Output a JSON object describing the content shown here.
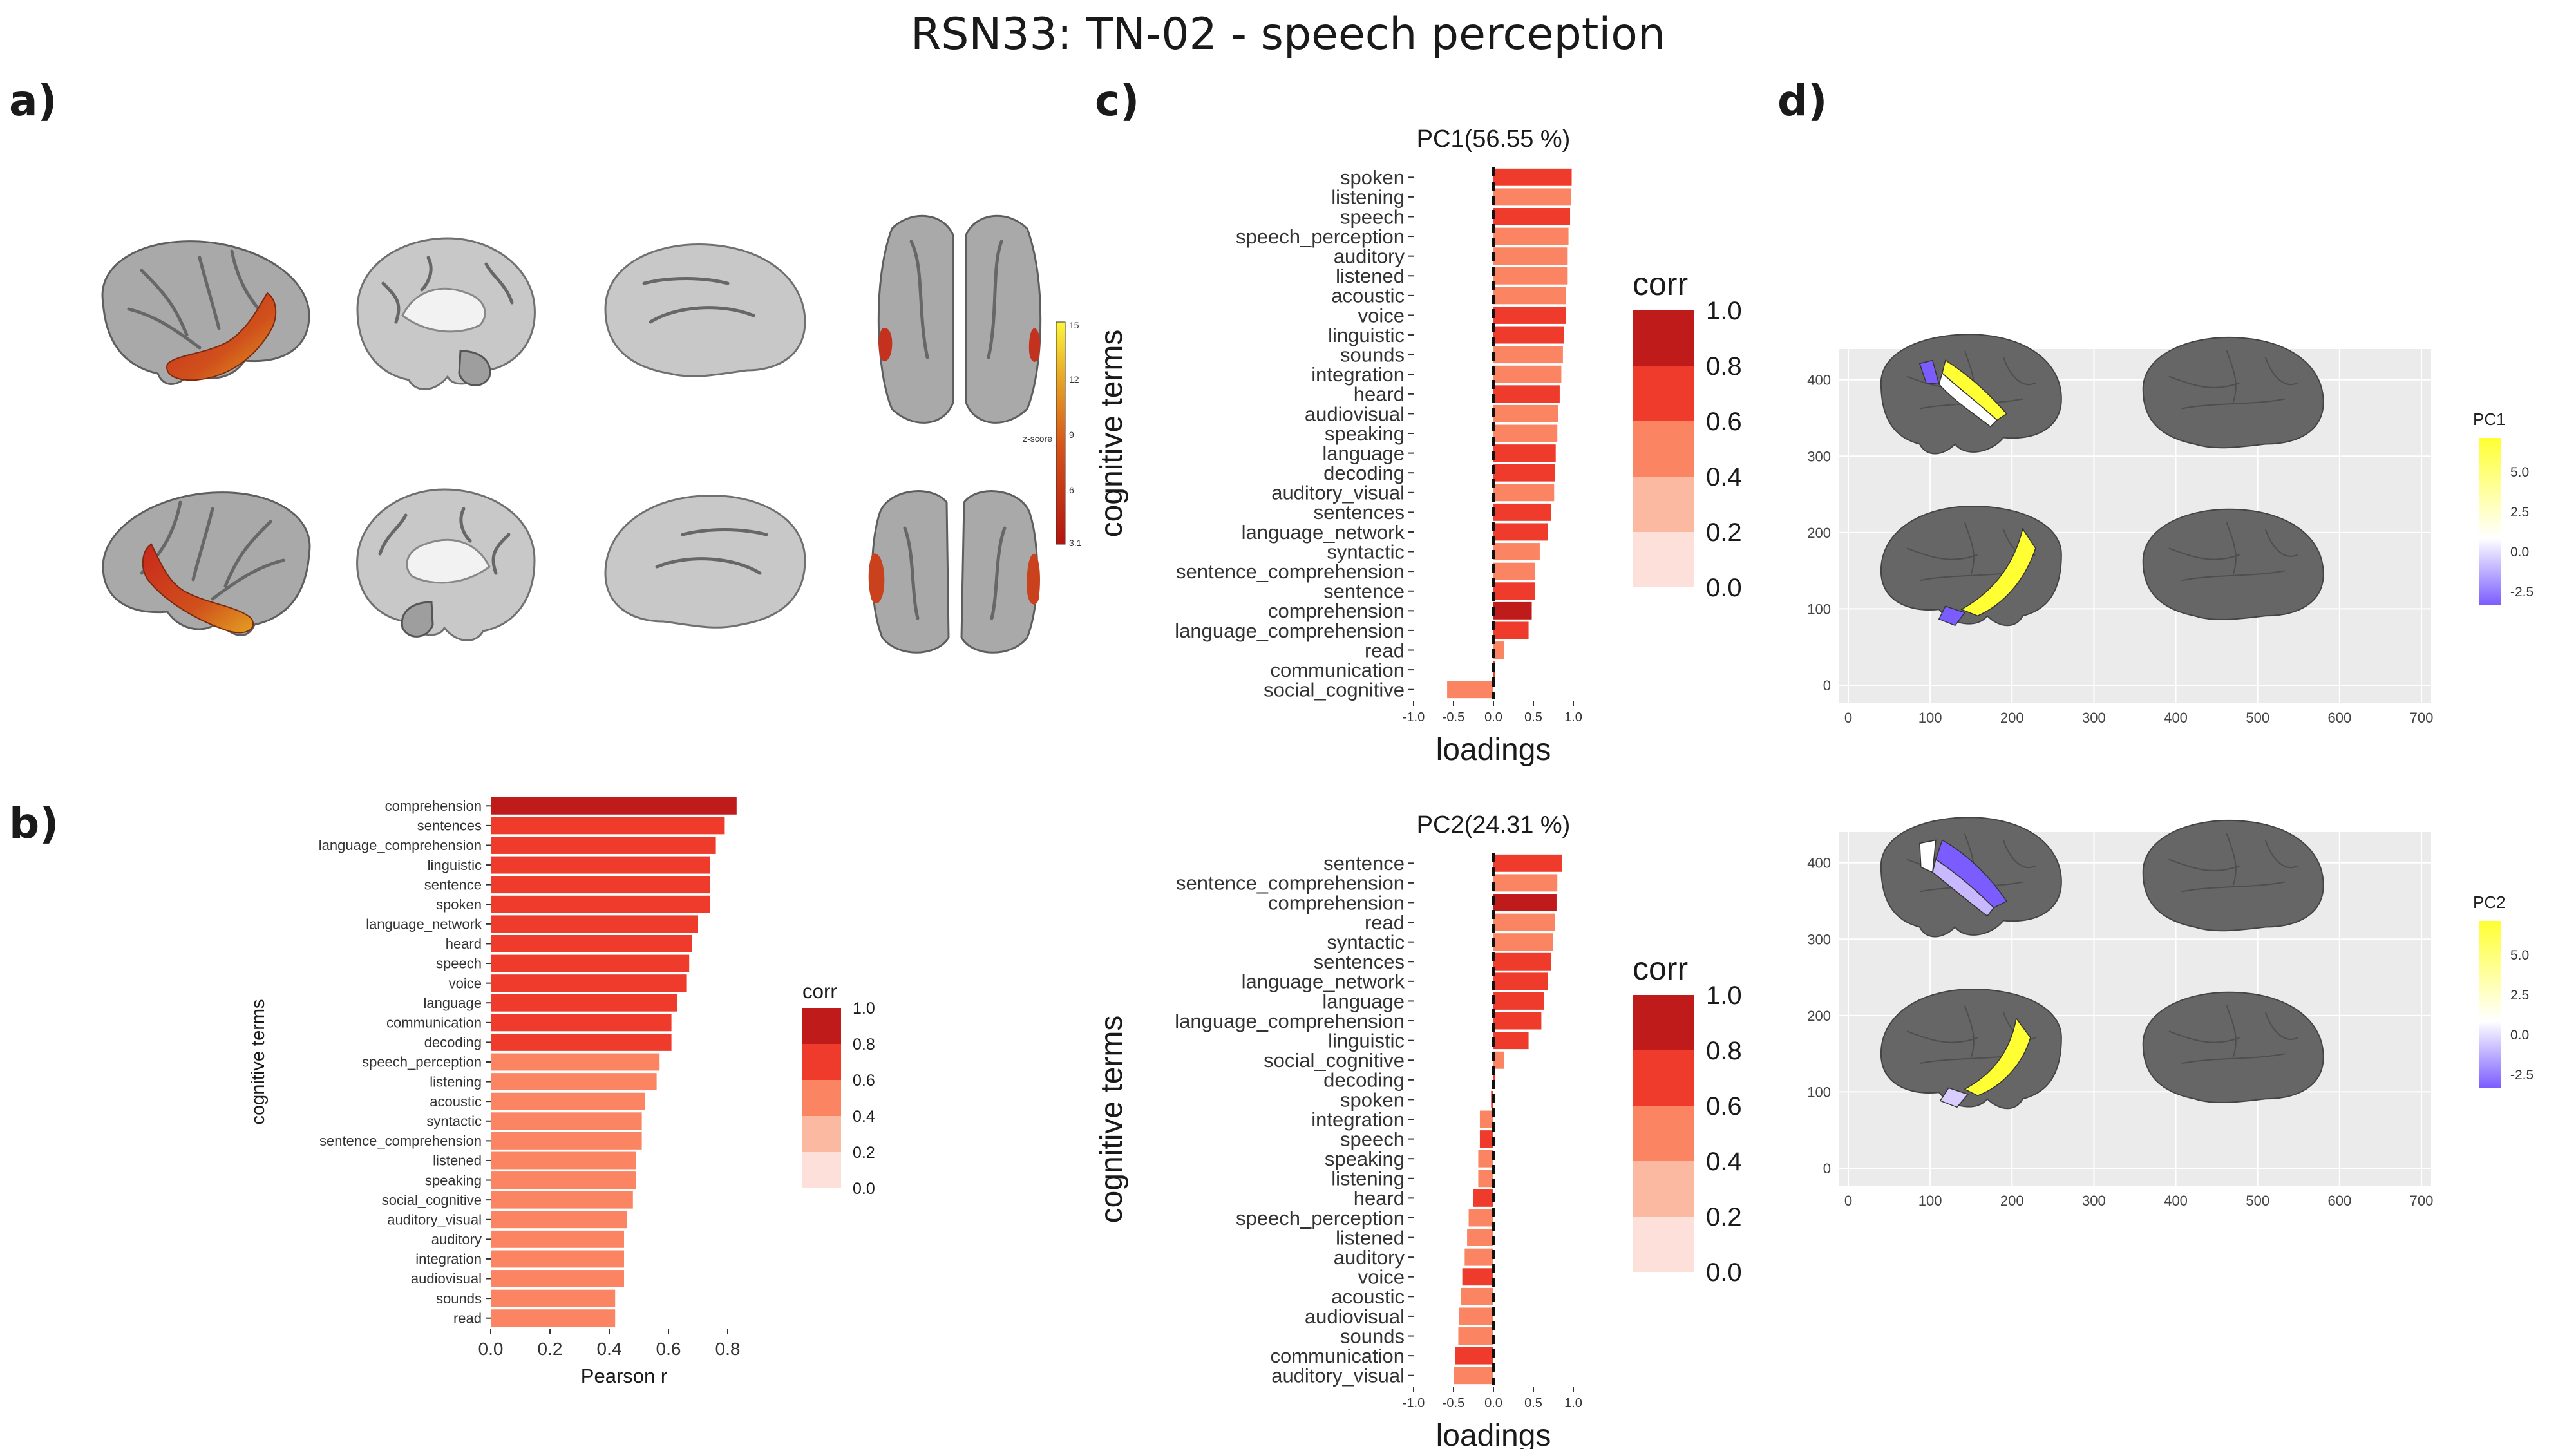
{
  "title": "RSN33: TN-02 - speech perception",
  "panels": {
    "a": "a)",
    "b": "b)",
    "c": "c)",
    "d": "d)"
  },
  "panel_a": {
    "colorbar_label": "z-score",
    "colorbar_ticks": [
      "15",
      "12",
      "9",
      "6",
      "3.1"
    ]
  },
  "palette": {
    "corr_bins": [
      "#fde0d9",
      "#fcb9a1",
      "#fb8462",
      "#ef3b2c",
      "#c01b1b"
    ],
    "pc_high": "#ffff33",
    "pc_mid": "#ffffff",
    "pc_low": "#7a5cff",
    "brain_gray": "#666666",
    "panel_bg": "#ebebeb"
  },
  "chart_data": [
    {
      "id": "b",
      "type": "bar",
      "orientation": "horizontal",
      "xlabel": "Pearson r",
      "ylabel": "cognitive terms",
      "xlim": [
        0,
        0.9
      ],
      "xticks": [
        0.0,
        0.2,
        0.4,
        0.6,
        0.8
      ],
      "xtick_labels": [
        "0.0",
        "0.2",
        "0.4",
        "0.6",
        "0.8"
      ],
      "legend": {
        "title": "corr",
        "labels": [
          "1.0",
          "0.8",
          "0.6",
          "0.4",
          "0.2",
          "0.0"
        ],
        "placement": "right"
      },
      "categories": [
        "comprehension",
        "sentences",
        "language_comprehension",
        "linguistic",
        "sentence",
        "spoken",
        "language_network",
        "heard",
        "speech",
        "voice",
        "language",
        "communication",
        "decoding",
        "speech_perception",
        "listening",
        "acoustic",
        "syntactic",
        "sentence_comprehension",
        "listened",
        "speaking",
        "social_cognitive",
        "auditory_visual",
        "auditory",
        "integration",
        "audiovisual",
        "sounds",
        "read"
      ],
      "values": [
        0.83,
        0.79,
        0.76,
        0.74,
        0.74,
        0.74,
        0.7,
        0.68,
        0.67,
        0.66,
        0.63,
        0.61,
        0.61,
        0.57,
        0.56,
        0.52,
        0.51,
        0.51,
        0.49,
        0.49,
        0.48,
        0.46,
        0.45,
        0.45,
        0.45,
        0.42,
        0.42
      ]
    },
    {
      "id": "c1",
      "type": "bar",
      "orientation": "horizontal",
      "title": "PC1(56.55 %)",
      "xlabel": "loadings",
      "ylabel": "cognitive terms",
      "xlim": [
        -1.0,
        1.0
      ],
      "xticks": [
        -1.0,
        -0.5,
        0.0,
        0.5,
        1.0
      ],
      "xtick_labels": [
        "-1.0",
        "-0.5",
        "0.0",
        "0.5",
        "1.0"
      ],
      "legend": {
        "title": "corr",
        "labels": [
          "1.0",
          "0.8",
          "0.6",
          "0.4",
          "0.2",
          "0.0"
        ],
        "placement": "right"
      },
      "categories": [
        "spoken",
        "listening",
        "speech",
        "speech_perception",
        "auditory",
        "listened",
        "acoustic",
        "voice",
        "linguistic",
        "sounds",
        "integration",
        "heard",
        "audiovisual",
        "speaking",
        "language",
        "decoding",
        "auditory_visual",
        "sentences",
        "language_network",
        "syntactic",
        "sentence_comprehension",
        "sentence",
        "comprehension",
        "language_comprehension",
        "read",
        "communication",
        "social_cognitive"
      ],
      "values": [
        0.98,
        0.97,
        0.96,
        0.94,
        0.93,
        0.93,
        0.91,
        0.91,
        0.88,
        0.87,
        0.85,
        0.83,
        0.81,
        0.8,
        0.78,
        0.77,
        0.76,
        0.72,
        0.68,
        0.58,
        0.52,
        0.52,
        0.48,
        0.44,
        0.13,
        0.02,
        -0.58
      ],
      "corr": [
        0.74,
        0.56,
        0.66,
        0.57,
        0.45,
        0.49,
        0.52,
        0.66,
        0.74,
        0.42,
        0.45,
        0.68,
        0.45,
        0.49,
        0.63,
        0.61,
        0.46,
        0.79,
        0.7,
        0.51,
        0.51,
        0.74,
        0.83,
        0.76,
        0.42,
        0.61,
        0.48
      ]
    },
    {
      "id": "c2",
      "type": "bar",
      "orientation": "horizontal",
      "title": "PC2(24.31 %)",
      "xlabel": "loadings",
      "ylabel": "cognitive terms",
      "xlim": [
        -1.0,
        1.0
      ],
      "xticks": [
        -1.0,
        -0.5,
        0.0,
        0.5,
        1.0
      ],
      "xtick_labels": [
        "-1.0",
        "-0.5",
        "0.0",
        "0.5",
        "1.0"
      ],
      "legend": {
        "title": "corr",
        "labels": [
          "1.0",
          "0.8",
          "0.6",
          "0.4",
          "0.2",
          "0.0"
        ],
        "placement": "right"
      },
      "categories": [
        "sentence",
        "sentence_comprehension",
        "comprehension",
        "read",
        "syntactic",
        "sentences",
        "language_network",
        "language",
        "language_comprehension",
        "linguistic",
        "social_cognitive",
        "decoding",
        "spoken",
        "integration",
        "speech",
        "speaking",
        "listening",
        "heard",
        "speech_perception",
        "listened",
        "auditory",
        "voice",
        "acoustic",
        "audiovisual",
        "sounds",
        "communication",
        "auditory_visual"
      ],
      "values": [
        0.86,
        0.8,
        0.79,
        0.77,
        0.75,
        0.72,
        0.68,
        0.63,
        0.6,
        0.44,
        0.13,
        0.02,
        -0.03,
        -0.17,
        -0.17,
        -0.19,
        -0.19,
        -0.25,
        -0.31,
        -0.33,
        -0.36,
        -0.39,
        -0.41,
        -0.43,
        -0.44,
        -0.48,
        -0.5
      ],
      "corr": [
        0.74,
        0.51,
        0.83,
        0.42,
        0.51,
        0.79,
        0.7,
        0.63,
        0.76,
        0.74,
        0.48,
        0.61,
        0.74,
        0.45,
        0.67,
        0.49,
        0.56,
        0.68,
        0.57,
        0.49,
        0.45,
        0.66,
        0.52,
        0.45,
        0.42,
        0.61,
        0.46
      ]
    }
  ],
  "panel_d": [
    {
      "legend_title": "PC1",
      "legend_ticks": [
        "5.0",
        "2.5",
        "0.0",
        "-2.5"
      ],
      "x_ticks": [
        "0",
        "100",
        "200",
        "300",
        "400",
        "500",
        "600",
        "700"
      ],
      "y_ticks": [
        "400",
        "300",
        "200",
        "100",
        "0"
      ]
    },
    {
      "legend_title": "PC2",
      "legend_ticks": [
        "5.0",
        "2.5",
        "0.0",
        "-2.5"
      ],
      "x_ticks": [
        "0",
        "100",
        "200",
        "300",
        "400",
        "500",
        "600",
        "700"
      ],
      "y_ticks": [
        "400",
        "300",
        "200",
        "100",
        "0"
      ]
    }
  ]
}
